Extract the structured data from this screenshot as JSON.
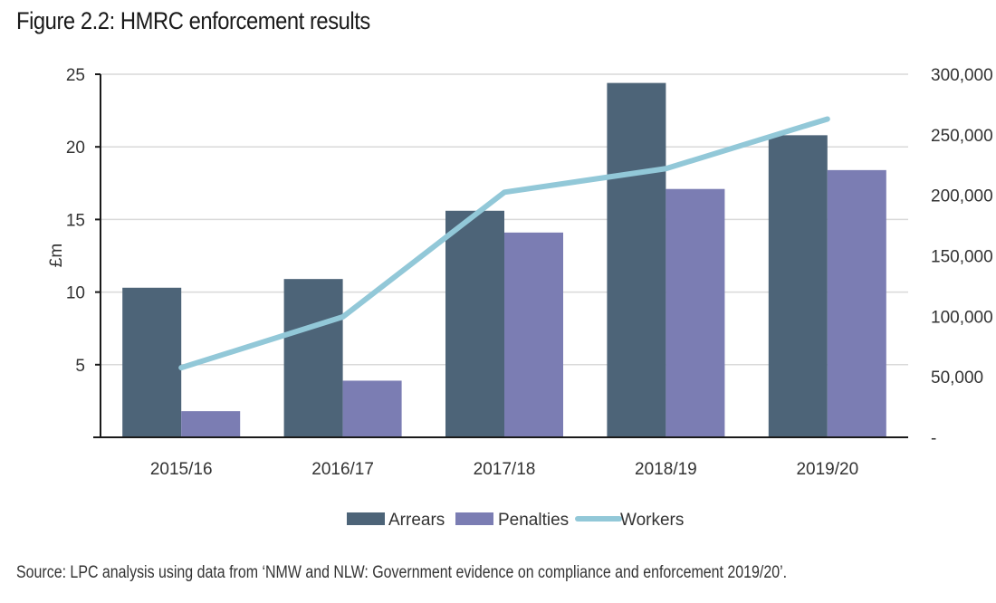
{
  "title": "Figure 2.2: HMRC enforcement results",
  "source": "Source: LPC analysis using data from ‘NMW and NLW: Government evidence on compliance and enforcement 2019/20’.",
  "colors": {
    "arrears": "#4d6478",
    "penalties": "#7b7db3",
    "workers": "#92c8d8",
    "grid": "#d9d9d9",
    "axis": "#1a1a1a"
  },
  "chart_data": {
    "type": "bar",
    "title": "Figure 2.2: HMRC enforcement results",
    "categories": [
      "2015/16",
      "2016/17",
      "2017/18",
      "2018/19",
      "2019/20"
    ],
    "xlabel": "",
    "ylabel": "£m",
    "ylim": [
      0,
      25
    ],
    "yticks": [
      5,
      10,
      15,
      20,
      25
    ],
    "ytick_labels": [
      "5",
      "10",
      "15",
      "20",
      "25"
    ],
    "y2lim": [
      0,
      300000
    ],
    "y2ticks": [
      0,
      50000,
      100000,
      150000,
      200000,
      250000,
      300000
    ],
    "y2tick_labels": [
      "-",
      "50,000",
      "100,000",
      "150,000",
      "200,000",
      "250,000",
      "300,000"
    ],
    "grid": true,
    "legend_position": "bottom",
    "series": [
      {
        "name": "Arrears",
        "type": "bar",
        "axis": "left",
        "values": [
          10.3,
          10.9,
          15.6,
          24.4,
          20.8
        ]
      },
      {
        "name": "Penalties",
        "type": "bar",
        "axis": "left",
        "values": [
          1.8,
          3.9,
          14.1,
          17.1,
          18.4
        ]
      },
      {
        "name": "Workers",
        "type": "line",
        "axis": "right",
        "values": [
          57500,
          99500,
          202500,
          222000,
          263000
        ]
      }
    ]
  }
}
